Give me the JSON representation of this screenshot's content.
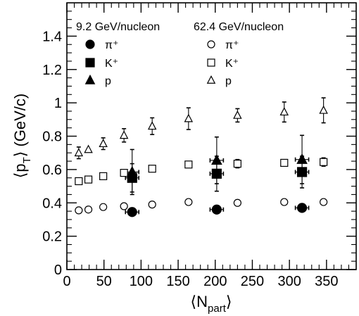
{
  "chart_data": {
    "type": "scatter",
    "xlabel_main": "⟨N",
    "xlabel_sub": "part",
    "xlabel_end": "⟩",
    "ylabel_main": "⟨p",
    "ylabel_sub": "T",
    "ylabel_end": "⟩ (GeV/c)",
    "xlim": [
      0,
      390
    ],
    "ylim": [
      0,
      1.6
    ],
    "xticks": [
      0,
      50,
      100,
      150,
      200,
      250,
      300,
      350
    ],
    "xtick_labels": [
      "0",
      "50",
      "100",
      "150",
      "200",
      "250",
      "300",
      "350"
    ],
    "yticks": [
      0,
      0.2,
      0.4,
      0.6,
      0.8,
      1.0,
      1.2,
      1.4
    ],
    "ytick_labels": [
      "0",
      "0.2",
      "0.4",
      "0.6",
      "0.8",
      "1",
      "1.2",
      "1.4"
    ],
    "grid": false,
    "legend_groups": [
      {
        "title": "9.2 GeV/nucleon",
        "entries": [
          "π⁺",
          "K⁺",
          "p"
        ]
      },
      {
        "title": "62.4 GeV/nucleon",
        "entries": [
          "π⁺",
          "K⁺",
          "p"
        ]
      }
    ],
    "series": [
      {
        "group": "9.2 GeV/nucleon",
        "particle": "pi",
        "marker": "circle",
        "filled": true,
        "x": [
          88,
          202,
          317
        ],
        "y": [
          0.345,
          0.36,
          0.37
        ],
        "err": [
          0.01,
          0.01,
          0.01
        ],
        "xerr": [
          9,
          9,
          9
        ]
      },
      {
        "group": "9.2 GeV/nucleon",
        "particle": "K",
        "marker": "square",
        "filled": true,
        "x": [
          88,
          202,
          317
        ],
        "y": [
          0.55,
          0.575,
          0.585
        ],
        "err": [
          0.085,
          0.105,
          0.095
        ],
        "xerr": [
          9,
          9,
          9
        ]
      },
      {
        "group": "9.2 GeV/nucleon",
        "particle": "p",
        "marker": "triangle",
        "filled": true,
        "x": [
          88,
          202,
          317
        ],
        "y": [
          0.585,
          0.655,
          0.66
        ],
        "err": [
          0.135,
          0.14,
          0.145
        ],
        "xerr": [
          9,
          9,
          9
        ]
      },
      {
        "group": "62.4 GeV/nucleon",
        "particle": "pi",
        "marker": "circle",
        "filled": false,
        "x": [
          16,
          29,
          49,
          77,
          115,
          164,
          230,
          293,
          346
        ],
        "y": [
          0.355,
          0.36,
          0.375,
          0.38,
          0.39,
          0.405,
          0.4,
          0.405,
          0.405
        ],
        "err": [
          0,
          0,
          0,
          0,
          0,
          0,
          0,
          0,
          0
        ],
        "xerr": [
          0,
          0,
          0,
          0,
          0,
          0,
          0,
          0,
          0
        ]
      },
      {
        "group": "62.4 GeV/nucleon",
        "particle": "K",
        "marker": "square",
        "filled": false,
        "x": [
          16,
          29,
          49,
          77,
          115,
          164,
          230,
          293,
          346
        ],
        "y": [
          0.53,
          0.54,
          0.56,
          0.58,
          0.605,
          0.63,
          0.635,
          0.64,
          0.645
        ],
        "err": [
          0,
          0,
          0,
          0,
          0,
          0,
          0.025,
          0,
          0.025
        ],
        "xerr": [
          0,
          0,
          0,
          0,
          0,
          0,
          0,
          0,
          0
        ]
      },
      {
        "group": "62.4 GeV/nucleon",
        "particle": "p",
        "marker": "triangle",
        "filled": false,
        "x": [
          16,
          29,
          49,
          77,
          115,
          164,
          230,
          293,
          346
        ],
        "y": [
          0.7,
          0.72,
          0.755,
          0.805,
          0.86,
          0.905,
          0.925,
          0.945,
          0.955
        ],
        "err": [
          0.035,
          0,
          0.035,
          0.04,
          0.05,
          0.065,
          0.04,
          0.06,
          0.075
        ],
        "xerr": [
          0,
          0,
          0,
          0,
          0,
          0,
          0,
          0,
          0
        ]
      }
    ]
  }
}
